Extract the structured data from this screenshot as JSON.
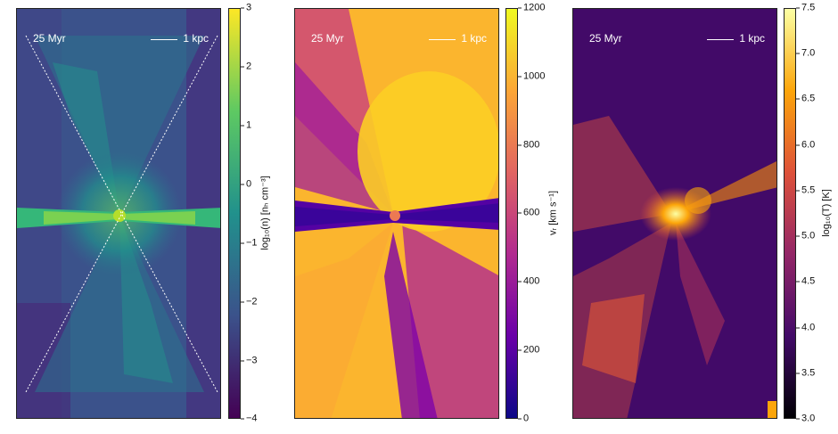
{
  "panels": [
    {
      "time": "25 Myr",
      "scale": "1 kpc",
      "colorbar": {
        "ticks": [
          "3",
          "2",
          "1",
          "0",
          "−1",
          "−2",
          "−3",
          "−4"
        ],
        "label": "log₁₀(n) [nₕ cm⁻³]",
        "colormap": [
          "#fde725",
          "#5ec962",
          "#21918c",
          "#3b528b",
          "#440154"
        ]
      }
    },
    {
      "time": "25 Myr",
      "scale": "1 kpc",
      "colorbar": {
        "ticks": [
          "1200",
          "1000",
          "800",
          "600",
          "400",
          "200",
          "0"
        ],
        "label": "vᵣ [km s⁻¹]",
        "colormap": [
          "#f0f921",
          "#fca636",
          "#e16462",
          "#b12a90",
          "#6a00a8",
          "#0d0887"
        ]
      }
    },
    {
      "time": "25 Myr",
      "scale": "1 kpc",
      "colorbar": {
        "ticks": [
          "7.5",
          "7.0",
          "6.5",
          "6.0",
          "5.5",
          "5.0",
          "4.5",
          "4.0",
          "3.5",
          "3.0"
        ],
        "label": "log₁₀(T) [K]",
        "colormap": [
          "#fcffa4",
          "#fca50a",
          "#dd513a",
          "#932667",
          "#420a68",
          "#000004"
        ]
      }
    }
  ]
}
